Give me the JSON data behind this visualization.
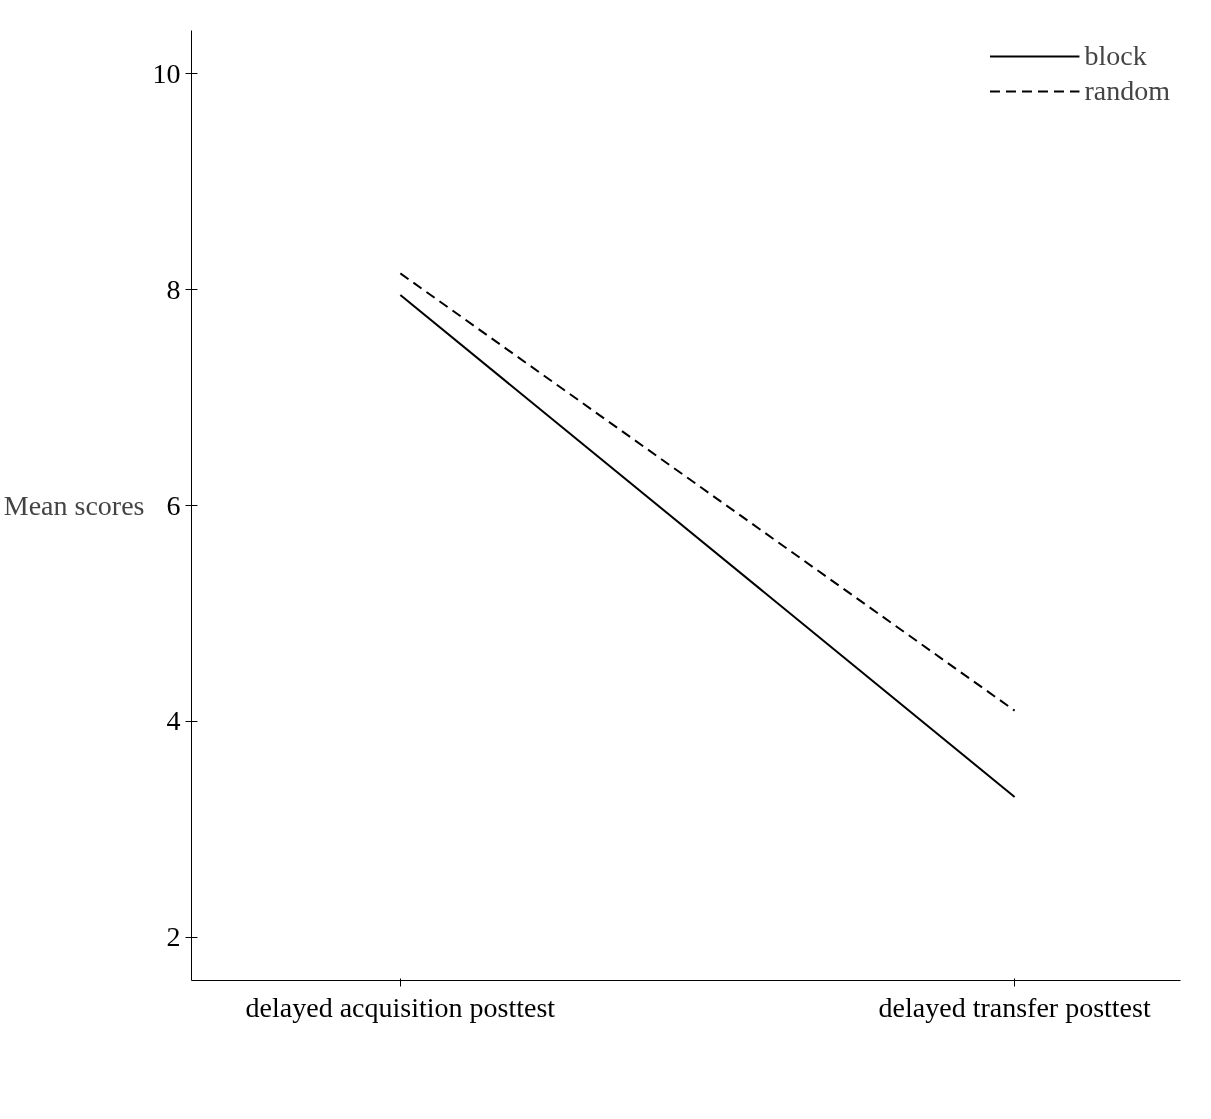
{
  "chart_data": {
    "type": "line",
    "ylabel": "Mean scores",
    "categories": [
      "delayed acquisition posttest",
      "delayed transfer posttest"
    ],
    "series": [
      {
        "name": "block",
        "color": "#000000",
        "line_style": "solid",
        "values": [
          7.95,
          3.3
        ]
      },
      {
        "name": "random",
        "color": "#000000",
        "line_style": "dashed",
        "values": [
          8.15,
          4.1
        ]
      }
    ],
    "ylim": [
      1.6,
      10.4
    ],
    "yticks": [
      2,
      4,
      6,
      8,
      10
    ],
    "grid": false,
    "legend": "top right"
  }
}
